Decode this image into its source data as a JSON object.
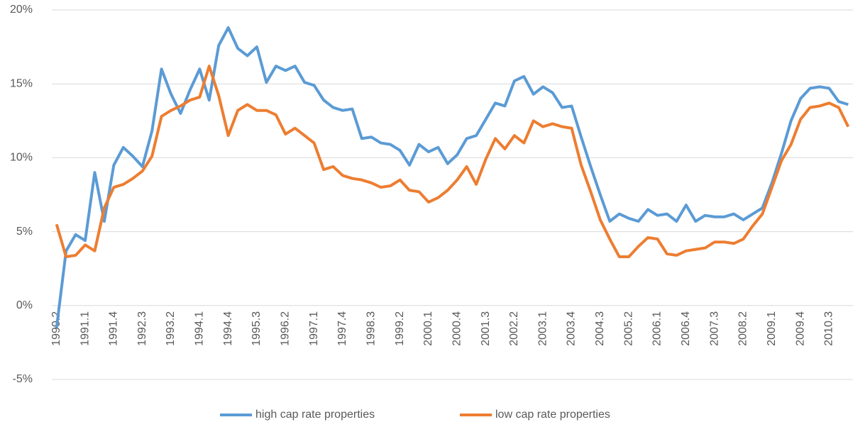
{
  "chart_data": {
    "type": "line",
    "categories": [
      "1990.2",
      null,
      null,
      "1991.1",
      null,
      null,
      "1991.4",
      null,
      null,
      "1992.3",
      null,
      null,
      "1993.2",
      null,
      null,
      "1994.1",
      null,
      null,
      "1994.4",
      null,
      null,
      "1995.3",
      null,
      null,
      "1996.2",
      null,
      null,
      "1997.1",
      null,
      null,
      "1997.4",
      null,
      null,
      "1998.3",
      null,
      null,
      "1999.2",
      null,
      null,
      "2000.1",
      null,
      null,
      "2000.4",
      null,
      null,
      "2001.3",
      null,
      null,
      "2002.2",
      null,
      null,
      "2003.1",
      null,
      null,
      "2003.4",
      null,
      null,
      "2004.3",
      null,
      null,
      "2005.2",
      null,
      null,
      "2006.1",
      null,
      null,
      "2006.4",
      null,
      null,
      "2007.3",
      null,
      null,
      "2008.2",
      null,
      null,
      "2009.1",
      null,
      null,
      "2009.4",
      null,
      null,
      "2010.3",
      null,
      null
    ],
    "series": [
      {
        "name": "high cap rate properties",
        "color": "#5b9bd5",
        "values": [
          -1.5,
          3.7,
          4.8,
          4.4,
          9.0,
          5.7,
          9.5,
          10.7,
          10.1,
          9.4,
          11.8,
          16.0,
          14.3,
          13.0,
          14.6,
          16.0,
          13.9,
          17.6,
          18.8,
          17.4,
          16.9,
          17.5,
          15.1,
          16.2,
          15.9,
          16.2,
          15.1,
          14.9,
          13.9,
          13.4,
          13.2,
          13.3,
          11.3,
          11.4,
          11.0,
          10.9,
          10.5,
          9.5,
          10.9,
          10.4,
          10.7,
          9.6,
          10.2,
          11.3,
          11.5,
          12.6,
          13.7,
          13.5,
          15.2,
          15.5,
          14.3,
          14.8,
          14.4,
          13.4,
          13.5,
          11.4,
          9.4,
          7.5,
          5.7,
          6.2,
          5.9,
          5.7,
          6.5,
          6.1,
          6.2,
          5.7,
          6.8,
          5.7,
          6.1,
          6.0,
          6.0,
          6.2,
          5.8,
          6.2,
          6.6,
          8.3,
          10.3,
          12.5,
          14.0,
          14.7,
          14.8,
          14.7,
          13.8,
          13.6
        ]
      },
      {
        "name": "low cap rate properties",
        "color": "#ed7d31",
        "values": [
          5.5,
          3.3,
          3.4,
          4.1,
          3.7,
          6.6,
          8.0,
          8.2,
          8.6,
          9.1,
          10.1,
          12.8,
          13.2,
          13.5,
          13.9,
          14.1,
          16.2,
          14.2,
          11.5,
          13.2,
          13.6,
          13.2,
          13.2,
          12.9,
          11.6,
          12.0,
          11.5,
          11.0,
          9.2,
          9.4,
          8.8,
          8.6,
          8.5,
          8.3,
          8.0,
          8.1,
          8.5,
          7.8,
          7.7,
          7.0,
          7.3,
          7.8,
          8.5,
          9.4,
          8.2,
          9.9,
          11.3,
          10.6,
          11.5,
          11.0,
          12.5,
          12.1,
          12.3,
          12.1,
          12.0,
          9.5,
          7.7,
          5.8,
          4.5,
          3.3,
          3.3,
          4.0,
          4.6,
          4.5,
          3.5,
          3.4,
          3.7,
          3.8,
          3.9,
          4.3,
          4.3,
          4.2,
          4.5,
          5.4,
          6.2,
          8.0,
          9.8,
          10.9,
          12.6,
          13.4,
          13.5,
          13.7,
          13.4,
          12.1
        ]
      }
    ],
    "ylim": [
      -5,
      20
    ],
    "yticks": [
      {
        "value": -5,
        "label": "-5%"
      },
      {
        "value": 0,
        "label": "0%"
      },
      {
        "value": 5,
        "label": "5%"
      },
      {
        "value": 10,
        "label": "10%"
      },
      {
        "value": 15,
        "label": "15%"
      },
      {
        "value": 20,
        "label": "20%"
      }
    ],
    "grid": true,
    "legend": "bottom"
  }
}
